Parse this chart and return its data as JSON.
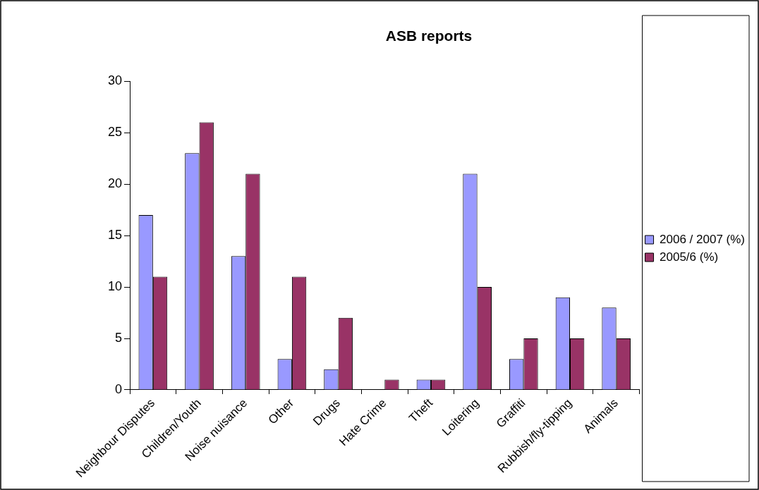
{
  "chart_data": {
    "type": "bar",
    "title": "ASB reports",
    "categories": [
      "Neighbour Disputes",
      "Children/Youth",
      "Noise nuisance",
      "Other",
      "Drugs",
      "Hate Crime",
      "Theft",
      "Loitering",
      "Graffiti",
      "Rubbish/fly-tipping",
      "Animals"
    ],
    "series": [
      {
        "name": "2006 / 2007 (%)",
        "color": "#9999ff",
        "values": [
          17,
          23,
          13,
          3,
          2,
          0,
          1,
          21,
          3,
          9,
          8
        ]
      },
      {
        "name": "2005/6 (%)",
        "color": "#993366",
        "values": [
          11,
          26,
          21,
          11,
          7,
          1,
          1,
          10,
          5,
          5,
          5
        ]
      }
    ],
    "ylim": [
      0,
      30
    ],
    "yticks": [
      0,
      5,
      10,
      15,
      20,
      25,
      30
    ],
    "grid": false,
    "legend": "right"
  }
}
